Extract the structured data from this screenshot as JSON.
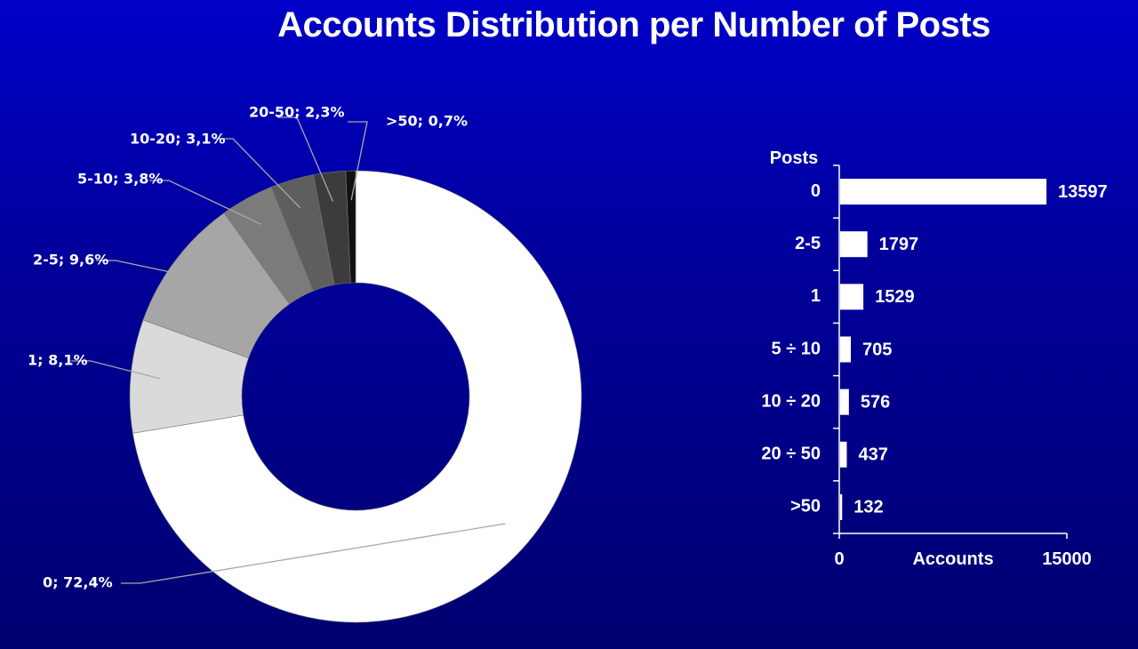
{
  "title": "Accounts Distribution per Number of Posts",
  "chart_data": [
    {
      "type": "pie",
      "style": "donut",
      "label_format": "{category}; {percent}",
      "slices": [
        {
          "label": "0",
          "value": 72.4,
          "display": "0; 72,4%",
          "color": "#ffffff"
        },
        {
          "label": "1",
          "value": 8.1,
          "display": "1; 8,1%",
          "color": "#dadada"
        },
        {
          "label": "2-5",
          "value": 9.6,
          "display": "2-5; 9,6%",
          "color": "#a6a6a6"
        },
        {
          "label": "5-10",
          "value": 3.8,
          "display": "5-10; 3,8%",
          "color": "#7b7b7b"
        },
        {
          "label": "10-20",
          "value": 3.1,
          "display": "10-20; 3,1%",
          "color": "#5e5e5e"
        },
        {
          "label": "20-50",
          "value": 2.3,
          "display": "20-50; 2,3%",
          "color": "#3c3c3c"
        },
        {
          "label": ">50",
          "value": 0.7,
          "display": ">50; 0,7%",
          "color": "#111111"
        }
      ]
    },
    {
      "type": "bar",
      "orientation": "horizontal",
      "categories": [
        "0",
        "2-5",
        "1",
        "5 ÷ 10",
        "10 ÷  20",
        "20 ÷ 50",
        ">50"
      ],
      "values": [
        13597,
        1797,
        1529,
        705,
        576,
        437,
        132
      ],
      "ylabel": "Posts",
      "xlabel": "Accounts",
      "xlim": [
        0,
        15000
      ],
      "xticks": [
        "0",
        "15000"
      ],
      "bar_color": "#ffffff"
    }
  ]
}
